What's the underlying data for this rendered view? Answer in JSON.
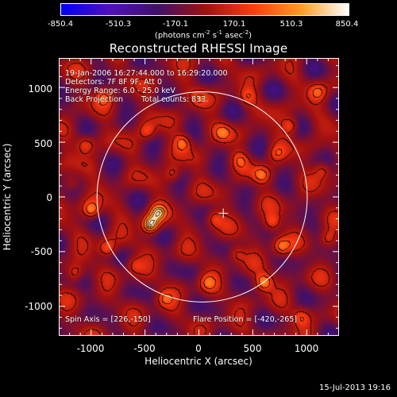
{
  "colorbar": {
    "ticks": [
      "-850.4",
      "-510.3",
      "-170.1",
      "170.1",
      "510.3",
      "850.4"
    ],
    "tick_values": [
      -850.4,
      -510.3,
      -170.1,
      170.1,
      510.3,
      850.4
    ],
    "range": [
      -850.4,
      850.4
    ],
    "unit_prefix": "(photons cm",
    "unit_exp1": "-2",
    "unit_mid1": " s",
    "unit_exp2": "-1",
    "unit_mid2": " asec",
    "unit_exp3": "-2",
    "unit_suffix": ")",
    "colormap": [
      "#0000ff",
      "#5010c0",
      "#40106a",
      "#a01010",
      "#ff3a10",
      "#ff9a20",
      "#ffffff"
    ]
  },
  "info": {
    "time_range": "19-Jan-2006 16:27:44.000 to 16:29:20.000",
    "detectors": "Detectors: 7F 8F 9F, Att 0",
    "energy": "Energy Range: 6.0 - 25.0 keV",
    "method": "Back Projection",
    "counts": "Total counts: 833.",
    "spin_axis": "Spin Axis = [226,-150]",
    "flare_position": "Flare Position = [-420,-265]"
  },
  "timestamp": "15-Jul-2013 19:16",
  "chart_data": {
    "type": "heatmap",
    "title": "Reconstructed RHESSI Image",
    "xlabel": "Heliocentric X (arcsec)",
    "ylabel": "Heliocentric Y (arcsec)",
    "xlim": [
      -1300,
      1300
    ],
    "ylim": [
      -1270,
      1270
    ],
    "xticks": [
      -1000,
      -500,
      0,
      500,
      1000
    ],
    "yticks": [
      -1000,
      -500,
      0,
      500,
      1000
    ],
    "xtick_labels": [
      "-1000",
      "-500",
      "0",
      "500",
      "1000"
    ],
    "ytick_labels": [
      "1000",
      "500",
      "0",
      "-500",
      "-1000"
    ],
    "solar_limb": {
      "center": [
        30,
        0
      ],
      "radius": 975
    },
    "crosshair": [
      226,
      -150
    ],
    "hotspots": [
      {
        "x": -450,
        "y": -250,
        "value": 850
      },
      {
        "x": -380,
        "y": -140,
        "value": 600
      },
      {
        "x": 600,
        "y": -780,
        "value": 650
      },
      {
        "x": -1000,
        "y": -120,
        "value": 550
      },
      {
        "x": 760,
        "y": -450,
        "value": 500
      },
      {
        "x": -150,
        "y": 500,
        "value": 500
      },
      {
        "x": 580,
        "y": 200,
        "value": 450
      },
      {
        "x": 850,
        "y": 650,
        "value": 450
      },
      {
        "x": -850,
        "y": -470,
        "value": 420
      },
      {
        "x": 680,
        "y": -230,
        "value": 420
      },
      {
        "x": -480,
        "y": 600,
        "value": 400
      },
      {
        "x": 220,
        "y": 590,
        "value": 400
      },
      {
        "x": -880,
        "y": 920,
        "value": 400
      },
      {
        "x": -1050,
        "y": 480,
        "value": 380
      },
      {
        "x": 140,
        "y": -200,
        "value": 360
      },
      {
        "x": -320,
        "y": -930,
        "value": 380
      },
      {
        "x": 80,
        "y": -780,
        "value": 360
      },
      {
        "x": 1100,
        "y": 960,
        "value": 380
      },
      {
        "x": 1150,
        "y": 250,
        "value": 360
      },
      {
        "x": 950,
        "y": -1100,
        "value": 360
      },
      {
        "x": -1150,
        "y": -700,
        "value": 340
      },
      {
        "x": 720,
        "y": 400,
        "value": 330
      },
      {
        "x": -240,
        "y": 210,
        "value": 320
      },
      {
        "x": 380,
        "y": 340,
        "value": 320
      },
      {
        "x": 350,
        "y": -520,
        "value": 300
      },
      {
        "x": -600,
        "y": -620,
        "value": 300
      },
      {
        "x": 0,
        "y": 900,
        "value": 300
      },
      {
        "x": 450,
        "y": 920,
        "value": 300
      },
      {
        "x": -1180,
        "y": 120,
        "value": 320
      },
      {
        "x": 1200,
        "y": -380,
        "value": 300
      }
    ]
  }
}
